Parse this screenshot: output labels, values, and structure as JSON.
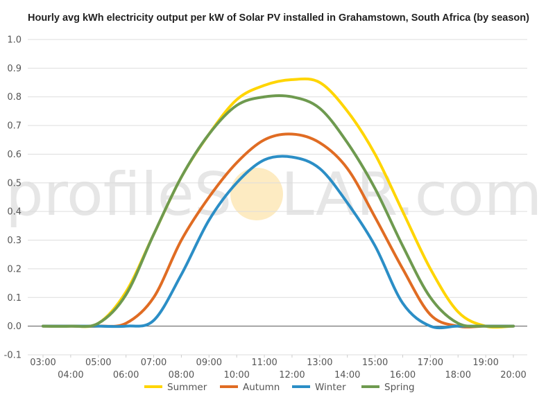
{
  "watermark": {
    "text_left": "profileS",
    "text_right": "LAR.com",
    "sun_color": "#f9c74f"
  },
  "chart_data": {
    "type": "line",
    "title": "Hourly avg kWh electricity output per kW of Solar PV installed in Grahamstown, South Africa (by season)",
    "xlabel": "",
    "ylabel": "",
    "ylim": [
      -0.1,
      1.0
    ],
    "yticks": [
      "-0.1",
      "0.0",
      "0.1",
      "0.2",
      "0.3",
      "0.4",
      "0.5",
      "0.6",
      "0.7",
      "0.8",
      "0.9",
      "1.0"
    ],
    "categories": [
      "03:00",
      "04:00",
      "05:00",
      "06:00",
      "07:00",
      "08:00",
      "09:00",
      "10:00",
      "11:00",
      "12:00",
      "13:00",
      "14:00",
      "15:00",
      "16:00",
      "17:00",
      "18:00",
      "19:00",
      "20:00"
    ],
    "grid": true,
    "legend": "bottom",
    "series": [
      {
        "name": "Summer",
        "color": "#ffd500",
        "values": [
          0,
          0,
          0.01,
          0.12,
          0.32,
          0.52,
          0.67,
          0.79,
          0.84,
          0.86,
          0.85,
          0.75,
          0.6,
          0.4,
          0.2,
          0.05,
          0.0,
          0.0
        ]
      },
      {
        "name": "Autumn",
        "color": "#e06c23",
        "values": [
          0,
          0,
          0,
          0.01,
          0.1,
          0.3,
          0.45,
          0.57,
          0.65,
          0.67,
          0.64,
          0.55,
          0.38,
          0.2,
          0.04,
          0.0,
          0.0,
          0.0
        ]
      },
      {
        "name": "Winter",
        "color": "#2b8ec6",
        "values": [
          0,
          0,
          0,
          0.0,
          0.02,
          0.18,
          0.37,
          0.5,
          0.58,
          0.59,
          0.55,
          0.43,
          0.28,
          0.08,
          0.0,
          0.0,
          0.0,
          0.0
        ]
      },
      {
        "name": "Spring",
        "color": "#6e9a4f",
        "values": [
          0,
          0,
          0.01,
          0.11,
          0.32,
          0.52,
          0.67,
          0.77,
          0.8,
          0.8,
          0.76,
          0.64,
          0.48,
          0.28,
          0.1,
          0.01,
          0.0,
          0.0
        ]
      }
    ]
  }
}
